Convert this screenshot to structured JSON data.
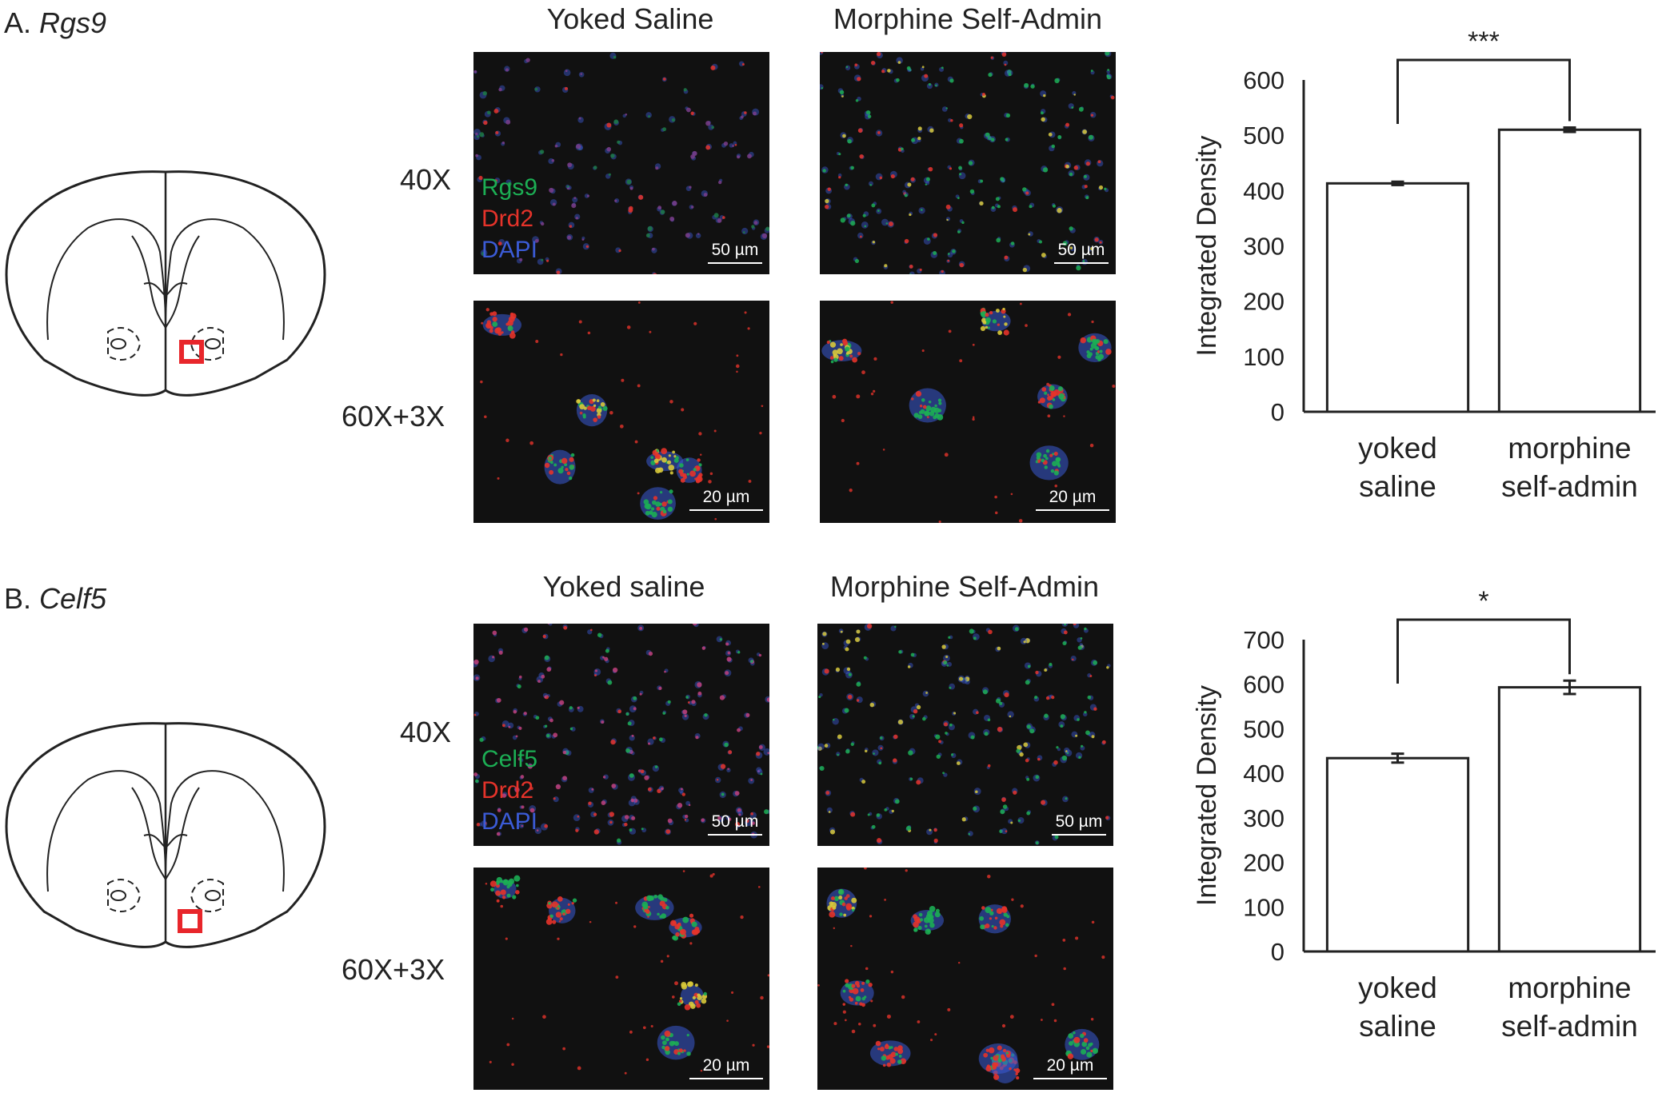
{
  "panels": [
    {
      "label_prefix": "A.",
      "gene": "Rgs9",
      "col_titles": [
        "Yoked Saline",
        "Morphine Self-Admin"
      ],
      "mag_low": "40X",
      "mag_high": "60X+3X",
      "legend": [
        "Rgs9",
        "Drd2",
        "DAPI"
      ],
      "scale_low": "50 µm",
      "scale_high": "20 µm",
      "chart_data": {
        "type": "bar",
        "categories": [
          [
            "yoked",
            "saline"
          ],
          [
            "morphine",
            "self-admin"
          ]
        ],
        "values": [
          413,
          510
        ],
        "errors": [
          3,
          4
        ],
        "ylabel": "Integrated Density",
        "ylim": [
          0,
          600
        ],
        "yticks": [
          0,
          100,
          200,
          300,
          400,
          500,
          600
        ],
        "significance": "***",
        "grid": false,
        "bar_fill": "#ffffff",
        "bar_stroke": "#222222"
      }
    },
    {
      "label_prefix": "B.",
      "gene": "Celf5",
      "col_titles": [
        "Yoked saline",
        "Morphine Self-Admin"
      ],
      "mag_low": "40X",
      "mag_high": "60X+3X",
      "legend": [
        "Celf5",
        "Drd2",
        "DAPI"
      ],
      "scale_low": "50 µm",
      "scale_high": "20 µm",
      "chart_data": {
        "type": "bar",
        "categories": [
          [
            "yoked",
            "saline"
          ],
          [
            "morphine",
            "self-admin"
          ]
        ],
        "values": [
          434,
          593
        ],
        "errors": [
          10,
          15
        ],
        "ylabel": "Integrated Density",
        "ylim": [
          0,
          700
        ],
        "yticks": [
          0,
          100,
          200,
          300,
          400,
          500,
          600,
          700
        ],
        "significance": "*",
        "grid": false,
        "bar_fill": "#ffffff",
        "bar_stroke": "#222222"
      }
    }
  ],
  "colors": {
    "green": "#1cae54",
    "red": "#e5332a",
    "blue": "#3b5bd6",
    "roi_box": "#e8262b"
  }
}
